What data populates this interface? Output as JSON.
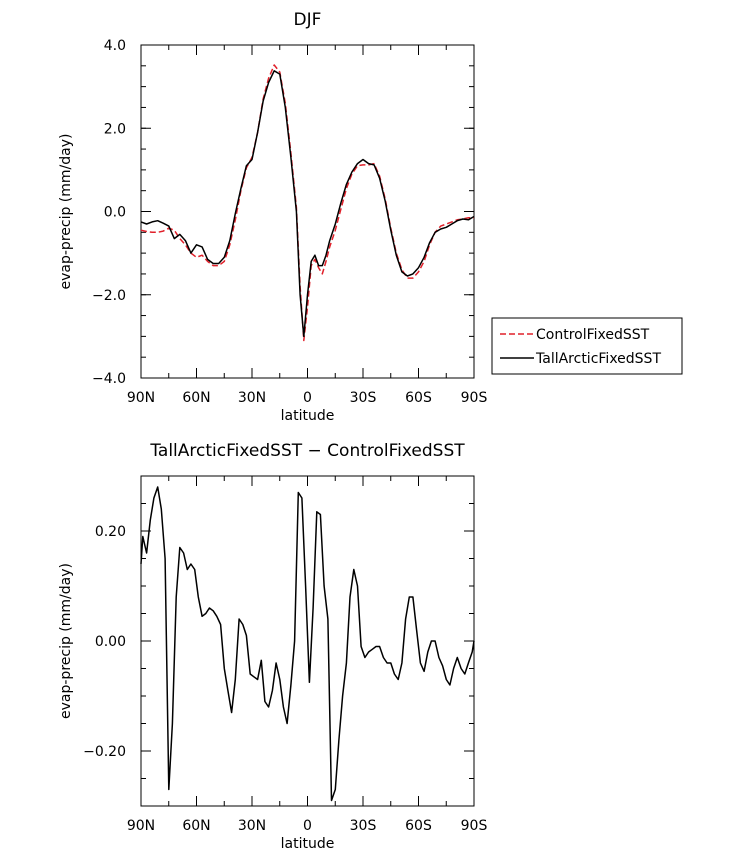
{
  "chart_data": [
    {
      "type": "line",
      "title": "DJF",
      "xlabel": "latitude",
      "ylabel": "evap-precip (mm/day)",
      "xlim": [
        -90,
        90
      ],
      "ylim": [
        -4.0,
        4.0
      ],
      "x_tick_values": [
        -90,
        -60,
        -30,
        0,
        30,
        60,
        90
      ],
      "x_tick_labels": [
        "90N",
        "60N",
        "30N",
        "0",
        "30S",
        "60S",
        "90S"
      ],
      "y_tick_values": [
        -4.0,
        -2.0,
        0.0,
        2.0,
        4.0
      ],
      "y_tick_labels": [
        "−4.0",
        "−2.0",
        "0.0",
        "2.0",
        "4.0"
      ],
      "grid": false,
      "legend": "right",
      "series": [
        {
          "name": "ControlFixedSST",
          "color": "#e0202a",
          "dash": "dashed",
          "x": [
            -90,
            -87,
            -84,
            -81,
            -78,
            -75,
            -72,
            -69,
            -66,
            -63,
            -60,
            -57,
            -54,
            -51,
            -48,
            -45,
            -42,
            -39,
            -36,
            -33,
            -30,
            -27,
            -24,
            -21,
            -18,
            -15,
            -12,
            -9,
            -6,
            -4,
            -2,
            0,
            2,
            4,
            6,
            8,
            10,
            12,
            15,
            18,
            21,
            24,
            27,
            30,
            33,
            36,
            39,
            42,
            45,
            48,
            51,
            54,
            57,
            60,
            63,
            66,
            69,
            72,
            75,
            78,
            81,
            84,
            87,
            90
          ],
          "y": [
            -0.45,
            -0.48,
            -0.5,
            -0.5,
            -0.47,
            -0.4,
            -0.45,
            -0.65,
            -0.8,
            -1.0,
            -1.1,
            -1.05,
            -1.2,
            -1.3,
            -1.3,
            -1.2,
            -0.8,
            -0.2,
            0.5,
            1.05,
            1.3,
            1.9,
            2.7,
            3.2,
            3.52,
            3.35,
            2.6,
            1.4,
            0.1,
            -1.8,
            -3.1,
            -2.3,
            -1.3,
            -1.15,
            -1.35,
            -1.5,
            -1.2,
            -0.85,
            -0.45,
            0.05,
            0.55,
            0.9,
            1.1,
            1.12,
            1.12,
            1.15,
            0.85,
            0.3,
            -0.4,
            -1.0,
            -1.4,
            -1.6,
            -1.6,
            -1.45,
            -1.2,
            -0.8,
            -0.5,
            -0.35,
            -0.3,
            -0.25,
            -0.2,
            -0.18,
            -0.15,
            -0.15
          ]
        },
        {
          "name": "TallArcticFixedSST",
          "color": "#000000",
          "dash": "solid",
          "x": [
            -90,
            -87,
            -84,
            -81,
            -78,
            -75,
            -72,
            -69,
            -66,
            -63,
            -60,
            -57,
            -54,
            -51,
            -48,
            -45,
            -42,
            -39,
            -36,
            -33,
            -30,
            -27,
            -24,
            -21,
            -18,
            -15,
            -12,
            -9,
            -6,
            -4,
            -2,
            0,
            2,
            4,
            6,
            8,
            10,
            12,
            15,
            18,
            21,
            24,
            27,
            30,
            33,
            36,
            39,
            42,
            45,
            48,
            51,
            54,
            57,
            60,
            63,
            66,
            69,
            72,
            75,
            78,
            81,
            84,
            87,
            90
          ],
          "y": [
            -0.25,
            -0.3,
            -0.25,
            -0.22,
            -0.28,
            -0.35,
            -0.65,
            -0.55,
            -0.7,
            -1.0,
            -0.8,
            -0.85,
            -1.15,
            -1.25,
            -1.25,
            -1.1,
            -0.7,
            -0.05,
            0.55,
            1.1,
            1.25,
            1.9,
            2.65,
            3.1,
            3.38,
            3.3,
            2.5,
            1.3,
            0.0,
            -2.0,
            -3.0,
            -2.0,
            -1.2,
            -1.05,
            -1.3,
            -1.3,
            -1.05,
            -0.7,
            -0.3,
            0.2,
            0.65,
            0.95,
            1.15,
            1.25,
            1.15,
            1.12,
            0.8,
            0.25,
            -0.45,
            -1.05,
            -1.45,
            -1.55,
            -1.5,
            -1.35,
            -1.1,
            -0.75,
            -0.5,
            -0.42,
            -0.38,
            -0.3,
            -0.22,
            -0.18,
            -0.2,
            -0.12
          ]
        }
      ]
    },
    {
      "type": "line",
      "title": "TallArcticFixedSST − ControlFixedSST",
      "xlabel": "latitude",
      "ylabel": "evap-precip (mm/day)",
      "xlim": [
        -90,
        90
      ],
      "ylim": [
        -0.3,
        0.3
      ],
      "x_tick_values": [
        -90,
        -60,
        -30,
        0,
        30,
        60,
        90
      ],
      "x_tick_labels": [
        "90N",
        "60N",
        "30N",
        "0",
        "30S",
        "60S",
        "90S"
      ],
      "y_tick_values": [
        -0.2,
        0.0,
        0.2
      ],
      "y_tick_labels": [
        "−0.20",
        "0.00",
        "0.20"
      ],
      "grid": false,
      "series": [
        {
          "color": "#000000",
          "dash": "solid",
          "x": [
            -90,
            -89,
            -87,
            -85,
            -83,
            -81,
            -79,
            -77,
            -75,
            -73,
            -71,
            -69,
            -67,
            -65,
            -63,
            -61,
            -59,
            -57,
            -55,
            -53,
            -51,
            -49,
            -47,
            -45,
            -43,
            -41,
            -39,
            -37,
            -35,
            -33,
            -31,
            -29,
            -27,
            -25,
            -23,
            -21,
            -19,
            -17,
            -15,
            -13,
            -11,
            -9,
            -7,
            -5,
            -3,
            -1,
            1,
            3,
            5,
            7,
            9,
            11,
            13,
            15,
            17,
            19,
            21,
            23,
            25,
            27,
            29,
            31,
            33,
            35,
            37,
            39,
            41,
            43,
            45,
            47,
            49,
            51,
            53,
            55,
            57,
            59,
            61,
            63,
            65,
            67,
            69,
            71,
            73,
            75,
            77,
            79,
            81,
            83,
            85,
            87,
            89,
            90
          ],
          "y": [
            0.14,
            0.19,
            0.16,
            0.22,
            0.26,
            0.28,
            0.24,
            0.15,
            -0.27,
            -0.15,
            0.08,
            0.17,
            0.16,
            0.13,
            0.14,
            0.13,
            0.08,
            0.045,
            0.05,
            0.06,
            0.055,
            0.045,
            0.03,
            -0.05,
            -0.09,
            -0.13,
            -0.07,
            0.04,
            0.03,
            0.01,
            -0.06,
            -0.065,
            -0.07,
            -0.035,
            -0.11,
            -0.12,
            -0.09,
            -0.04,
            -0.07,
            -0.12,
            -0.15,
            -0.08,
            0.0,
            0.27,
            0.26,
            0.1,
            -0.075,
            0.06,
            0.235,
            0.23,
            0.1,
            0.04,
            -0.29,
            -0.27,
            -0.18,
            -0.1,
            -0.04,
            0.08,
            0.13,
            0.1,
            -0.01,
            -0.03,
            -0.02,
            -0.015,
            -0.01,
            -0.01,
            -0.03,
            -0.04,
            -0.04,
            -0.06,
            -0.07,
            -0.04,
            0.04,
            0.08,
            0.08,
            0.02,
            -0.04,
            -0.055,
            -0.02,
            0.0,
            0.0,
            -0.03,
            -0.045,
            -0.07,
            -0.08,
            -0.05,
            -0.03,
            -0.05,
            -0.06,
            -0.04,
            -0.02,
            0.0
          ]
        }
      ]
    }
  ]
}
